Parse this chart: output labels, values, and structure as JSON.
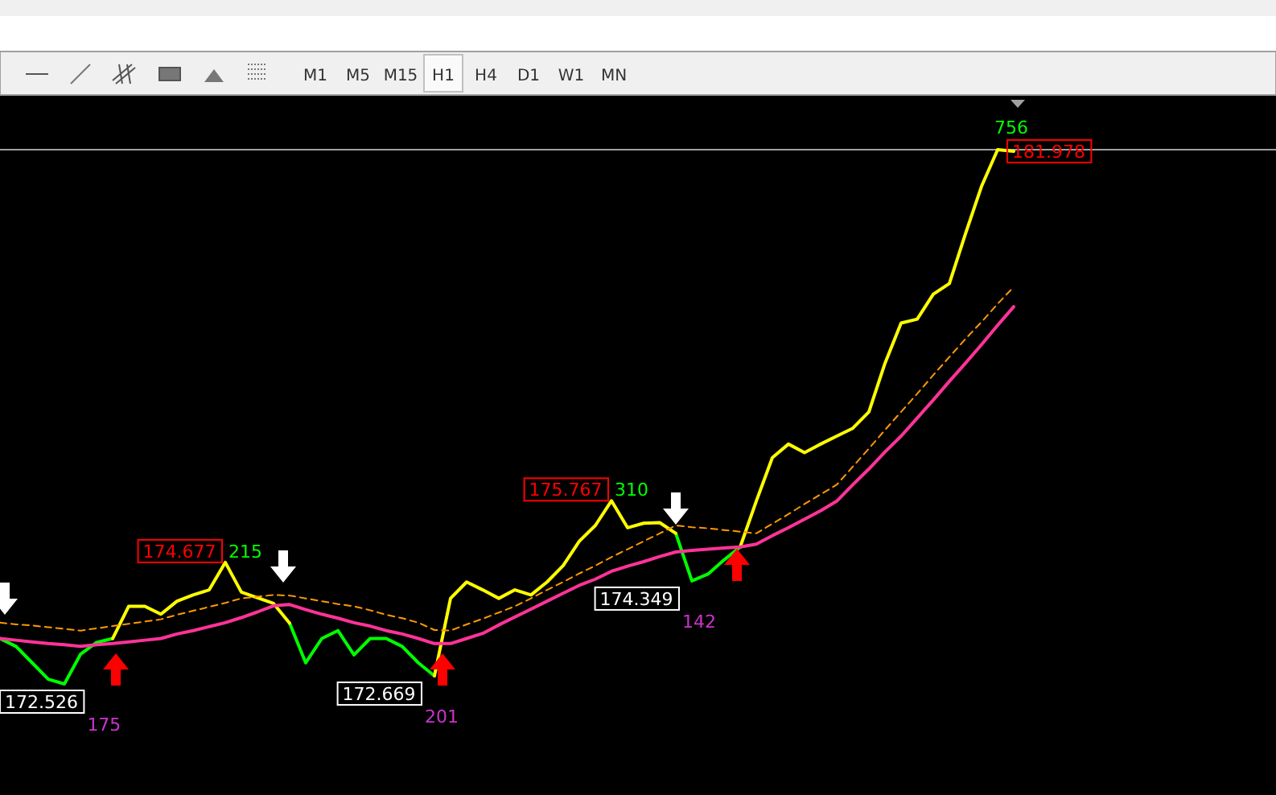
{
  "chart_data": {
    "type": "line",
    "marker": "none",
    "categories": [
      null,
      null,
      null,
      null,
      null,
      null,
      null,
      null,
      null,
      null,
      null,
      null,
      null,
      null,
      null,
      null,
      null,
      null,
      null,
      null,
      null,
      null,
      null,
      null,
      null,
      null,
      null,
      null,
      null,
      null,
      null,
      null,
      null,
      null,
      null,
      null,
      null,
      null,
      null,
      null,
      null,
      null,
      null,
      null,
      null,
      null,
      null,
      null,
      null,
      null,
      null,
      null,
      null,
      null,
      null,
      null,
      null,
      null,
      null,
      null,
      null,
      null,
      null,
      null
    ],
    "series": [
      {
        "color": "#00ff00",
        "values": [
          173.33,
          173.19,
          172.9,
          172.61,
          172.526,
          173.05,
          173.26,
          173.33,
          null,
          null,
          null,
          null,
          null,
          null,
          null,
          null,
          null,
          null,
          173.6,
          172.9,
          173.33,
          173.47,
          173.04,
          173.33,
          173.33,
          173.19,
          172.9,
          172.669,
          null,
          null,
          null,
          null,
          null,
          null,
          null,
          null,
          null,
          null,
          null,
          null,
          null,
          null,
          175.19,
          174.349,
          174.47,
          174.72,
          174.95,
          null,
          null,
          null,
          null,
          null,
          null,
          null,
          null,
          null,
          null,
          null,
          null,
          null,
          null,
          null,
          null,
          null
        ],
        "value_labels": [
          null,
          null,
          null,
          null,
          "172.526",
          null,
          null,
          null,
          null,
          null,
          null,
          null,
          null,
          null,
          null,
          null,
          null,
          null,
          null,
          null,
          null,
          null,
          null,
          null,
          null,
          null,
          null,
          "172.669",
          null,
          null,
          null,
          null,
          null,
          null,
          null,
          null,
          null,
          null,
          null,
          null,
          null,
          null,
          null,
          "174.349",
          null,
          null,
          null,
          null,
          null,
          null,
          null,
          null,
          null,
          null,
          null,
          null,
          null,
          null,
          null,
          null,
          null,
          null,
          null,
          null
        ]
      },
      {
        "color": "#ffff00",
        "values": [
          null,
          null,
          null,
          null,
          null,
          null,
          null,
          173.33,
          173.9,
          173.9,
          173.76,
          173.99,
          174.1,
          174.19,
          174.677,
          174.15,
          174.05,
          173.95,
          173.6,
          null,
          null,
          null,
          null,
          null,
          null,
          null,
          null,
          172.669,
          174.04,
          174.33,
          174.19,
          174.04,
          174.19,
          174.1,
          174.33,
          174.62,
          175.05,
          175.33,
          175.767,
          175.29,
          175.37,
          175.38,
          175.19,
          null,
          null,
          null,
          174.95,
          175.76,
          176.53,
          176.77,
          176.62,
          176.77,
          176.91,
          177.05,
          177.34,
          178.2,
          178.91,
          178.98,
          179.42,
          179.61,
          180.49,
          181.33,
          181.978,
          181.95
        ],
        "value_labels": [
          null,
          null,
          null,
          null,
          null,
          null,
          null,
          null,
          null,
          null,
          null,
          null,
          null,
          null,
          "174.677",
          null,
          null,
          null,
          null,
          null,
          null,
          null,
          null,
          null,
          null,
          null,
          null,
          null,
          null,
          null,
          null,
          null,
          null,
          null,
          null,
          null,
          null,
          null,
          "175.767",
          null,
          null,
          null,
          null,
          null,
          null,
          null,
          null,
          null,
          null,
          null,
          null,
          null,
          null,
          null,
          null,
          null,
          null,
          null,
          null,
          null,
          null,
          null,
          "181.978",
          null
        ]
      },
      {
        "color": "#ff3399",
        "values": [
          173.33,
          173.3,
          173.27,
          173.24,
          173.22,
          173.19,
          173.22,
          173.24,
          173.27,
          173.3,
          173.33,
          173.41,
          173.47,
          173.54,
          173.61,
          173.7,
          173.8,
          173.91,
          173.93,
          173.84,
          173.76,
          173.69,
          173.61,
          173.55,
          173.47,
          173.41,
          173.33,
          173.24,
          173.24,
          173.33,
          173.42,
          173.57,
          173.71,
          173.85,
          173.99,
          174.13,
          174.27,
          174.38,
          174.52,
          174.61,
          174.69,
          174.78,
          174.86,
          174.89,
          174.91,
          174.93,
          174.95,
          175.0,
          175.15,
          175.29,
          175.44,
          175.59,
          175.76,
          176.05,
          176.33,
          176.63,
          176.91,
          177.23,
          177.55,
          177.88,
          178.2,
          178.53,
          178.87,
          179.2
        ]
      },
      {
        "color": "#ff9900",
        "line_style": "dashed",
        "values": [
          173.61,
          173.58,
          173.56,
          173.53,
          173.5,
          173.47,
          173.51,
          173.55,
          173.59,
          173.63,
          173.67,
          173.75,
          173.82,
          173.89,
          173.96,
          174.04,
          174.07,
          174.1,
          174.09,
          174.04,
          173.99,
          173.94,
          173.9,
          173.83,
          173.75,
          173.69,
          173.61,
          173.48,
          173.47,
          173.58,
          173.68,
          173.79,
          173.9,
          174.04,
          174.19,
          174.33,
          174.48,
          174.62,
          174.77,
          174.91,
          175.05,
          175.19,
          175.33,
          175.3,
          175.28,
          175.25,
          175.22,
          175.19,
          175.36,
          175.53,
          175.71,
          175.88,
          176.05,
          176.37,
          176.69,
          177.02,
          177.34,
          177.66,
          177.99,
          178.31,
          178.63,
          178.93,
          179.25,
          179.55
        ]
      }
    ],
    "ref_lines": [
      {
        "axis": "y",
        "value": 181.978,
        "color": "#a0a0a0"
      }
    ],
    "annotations": [
      "175",
      "215",
      "201",
      "310",
      "142",
      "756",
      "M1",
      "M5",
      "M15",
      "H1",
      "H4",
      "D1",
      "W1",
      "MN"
    ]
  }
}
